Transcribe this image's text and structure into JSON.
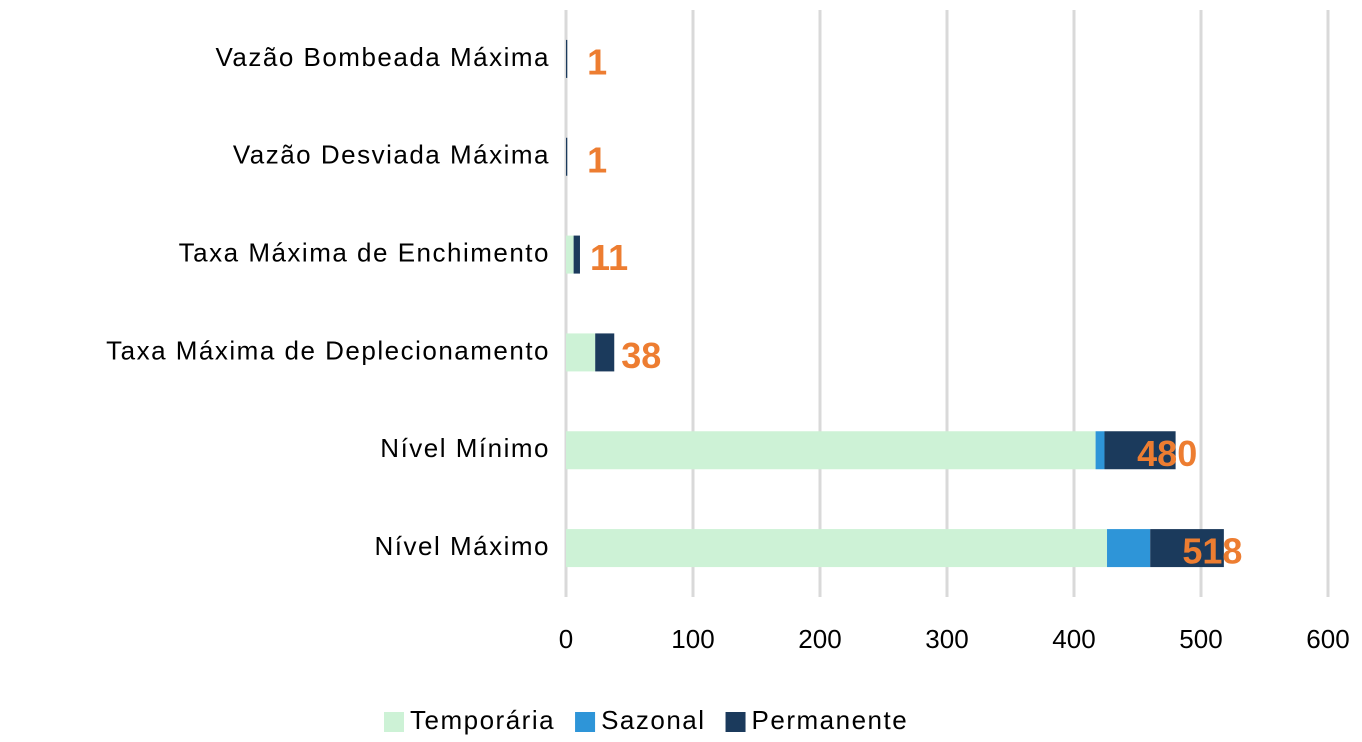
{
  "chart_data": {
    "type": "bar",
    "orientation": "horizontal",
    "stacked": true,
    "categories": [
      "Vazão Bombeada Máxima",
      "Vazão Desviada Máxima",
      "Taxa Máxima de Enchimento",
      "Taxa Máxima de Deplecionamento",
      "Nível Mínimo",
      "Nível Máximo"
    ],
    "series": [
      {
        "name": "Temporária",
        "color": "#cdf2d6",
        "values": [
          0,
          0,
          6,
          23,
          417,
          426
        ]
      },
      {
        "name": "Sazonal",
        "color": "#2e95d8",
        "values": [
          0,
          0,
          0,
          0,
          7,
          34
        ]
      },
      {
        "name": "Permanente",
        "color": "#1b3a5c",
        "values": [
          1,
          1,
          5,
          15,
          56,
          58
        ]
      }
    ],
    "totals": [
      1,
      1,
      11,
      38,
      480,
      518
    ],
    "xlim": [
      0,
      600
    ],
    "xticks": [
      0,
      100,
      200,
      300,
      400,
      500,
      600
    ],
    "grid": true,
    "legend": "bottom"
  }
}
